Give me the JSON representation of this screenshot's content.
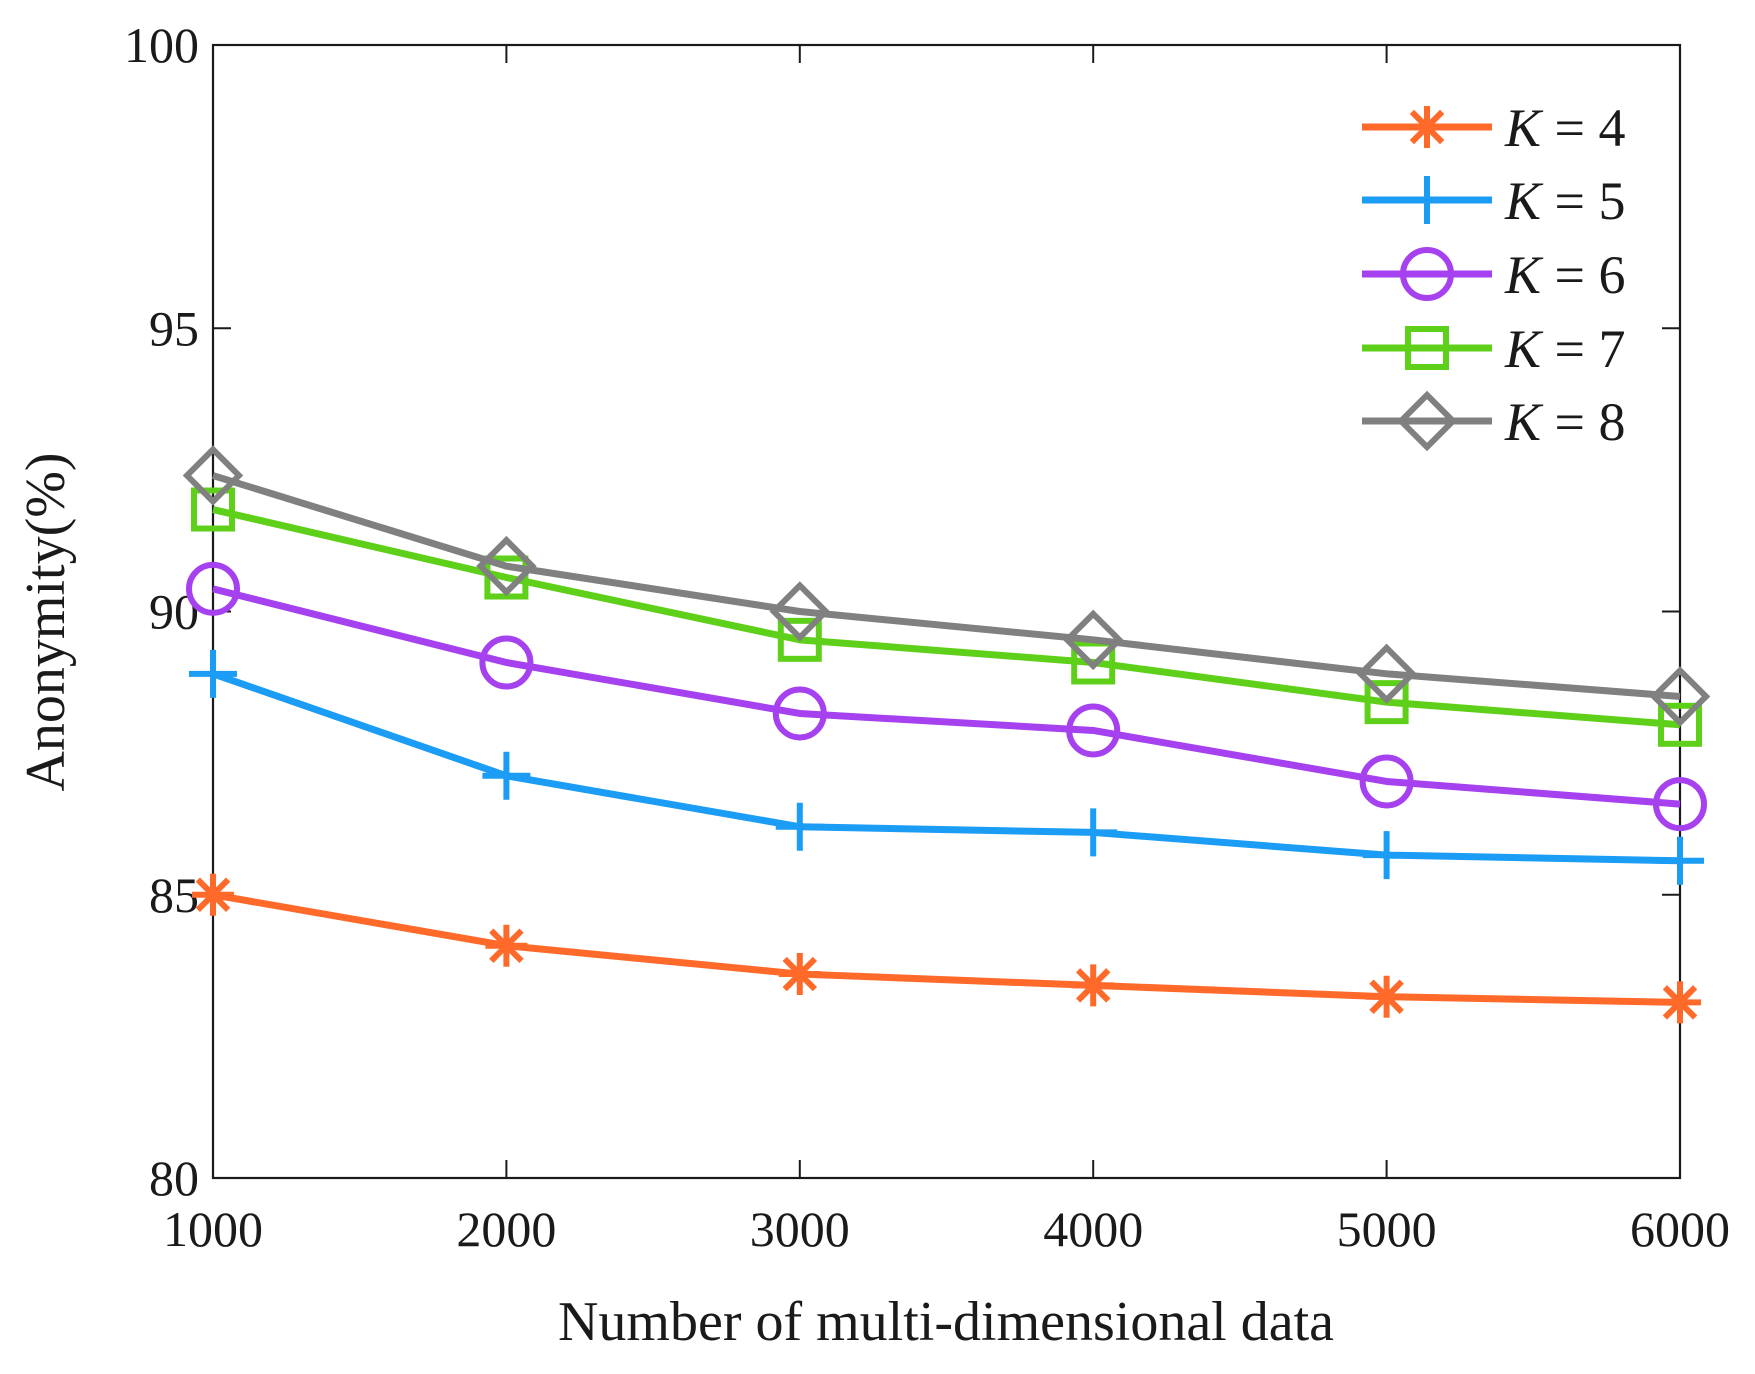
{
  "chart_data": {
    "type": "line",
    "title": "",
    "xlabel": "Number of multi-dimensional data",
    "ylabel": "Anonymity(%)",
    "x": [
      1000,
      2000,
      3000,
      4000,
      5000,
      6000
    ],
    "xlim": [
      1000,
      6000
    ],
    "ylim": [
      80,
      100
    ],
    "xticks": [
      "1000",
      "2000",
      "3000",
      "4000",
      "5000",
      "6000"
    ],
    "yticks": [
      "80",
      "85",
      "90",
      "95",
      "100"
    ],
    "grid": false,
    "legend_position": "top-right",
    "series": [
      {
        "name": "K = 4",
        "var": "K",
        "rest": " = 4",
        "color": "#FF6A2B",
        "marker": "asterisk",
        "values": [
          85.0,
          84.1,
          83.6,
          83.4,
          83.2,
          83.1
        ]
      },
      {
        "name": "K = 5",
        "var": "K",
        "rest": " = 5",
        "color": "#1B9CF5",
        "marker": "plus",
        "values": [
          88.9,
          87.1,
          86.2,
          86.1,
          85.7,
          85.6
        ]
      },
      {
        "name": "K = 6",
        "var": "K",
        "rest": " = 6",
        "color": "#A541EE",
        "marker": "circle",
        "values": [
          90.4,
          89.1,
          88.2,
          87.9,
          87.0,
          86.6
        ]
      },
      {
        "name": "K = 7",
        "var": "K",
        "rest": " = 7",
        "color": "#5FD01A",
        "marker": "square",
        "values": [
          91.8,
          90.6,
          89.5,
          89.1,
          88.4,
          88.0
        ]
      },
      {
        "name": "K = 8",
        "var": "K",
        "rest": " = 8",
        "color": "#808080",
        "marker": "diamond",
        "values": [
          92.4,
          90.8,
          90.0,
          89.5,
          88.9,
          88.5
        ]
      }
    ]
  }
}
